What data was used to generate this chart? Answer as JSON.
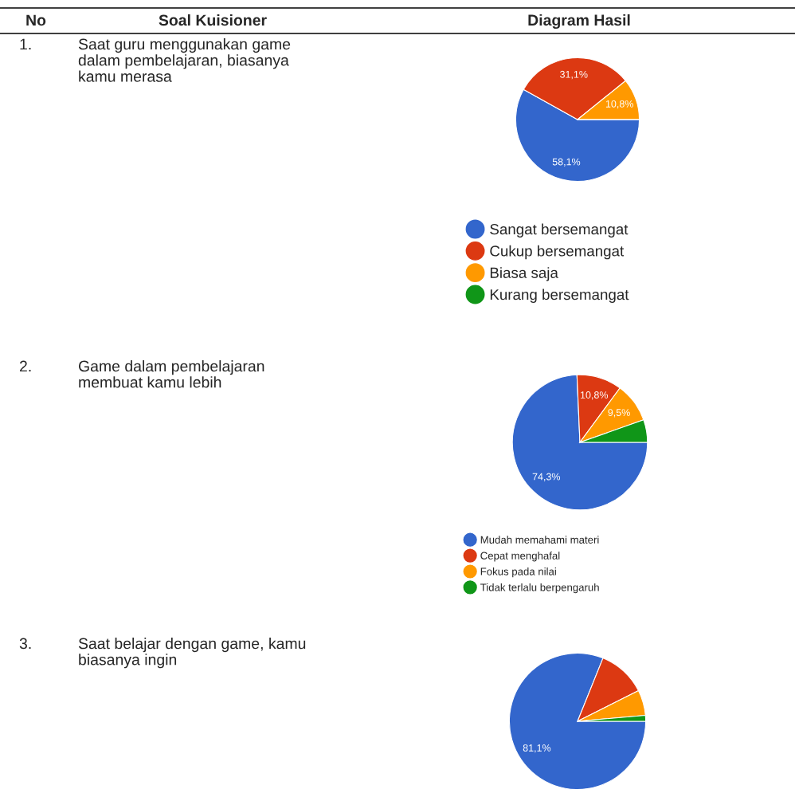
{
  "chart_data": [
    {
      "type": "pie",
      "title": "Saat guru menggunakan game\ndalam pembelajaran, biasanya\nkamu merasa",
      "annotations": [
        "No",
        "Soal Kuisioner",
        "Diagram Hasil",
        "1."
      ],
      "categories": [
        "Sangat bersemangat",
        "Cukup bersemangat",
        "Biasa saja",
        "Kurang bersemangat"
      ],
      "values": [
        58.1,
        31.1,
        10.8,
        0
      ],
      "colors": [
        "#3366cc",
        "#dc3912",
        "#ff9900",
        "#109618"
      ],
      "value_labels": [
        "58,1%",
        "31,1%",
        "10,8%",
        null
      ],
      "legend": "bottom"
    },
    {
      "type": "pie",
      "title": "Game dalam pembelajaran\nmembuat kamu lebih",
      "annotations": [
        "2."
      ],
      "categories": [
        "Mudah memahami materi",
        "Cepat menghafal",
        "Fokus pada nilai",
        "Tidak terlalu berpengaruh"
      ],
      "values": [
        74.3,
        10.8,
        9.5,
        5.4
      ],
      "colors": [
        "#3366cc",
        "#dc3912",
        "#ff9900",
        "#109618"
      ],
      "value_labels": [
        "74,3%",
        "10,8%",
        "9,5%",
        null
      ],
      "legend": "bottom"
    },
    {
      "type": "pie",
      "title": "Saat belajar dengan game, kamu\nbiasanya ingin",
      "annotations": [
        "3."
      ],
      "categories": [
        null,
        null,
        null,
        null
      ],
      "values": [
        81.1,
        11.5,
        6.0,
        1.4
      ],
      "colors": [
        "#3366cc",
        "#dc3912",
        "#ff9900",
        "#109618"
      ],
      "value_labels": [
        "81,1%",
        null,
        null,
        null
      ]
    }
  ]
}
